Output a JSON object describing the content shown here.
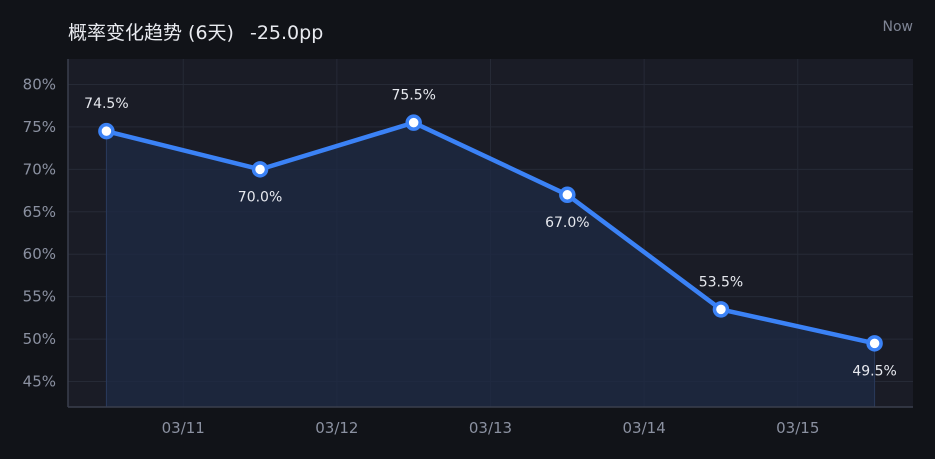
{
  "header": {
    "title": "概率变化趋势 (6天)",
    "change": "-25.0pp",
    "now_label": "Now"
  },
  "colors": {
    "background": "#111318",
    "plot_background": "#1a1c26",
    "line": "#3b82f6",
    "area": "#1d2a44"
  },
  "chart_data": {
    "type": "line",
    "title": "概率变化趋势 (6天)",
    "x": [
      0,
      1,
      2,
      3,
      4,
      5
    ],
    "x_tick_positions": [
      0.5,
      1.5,
      2.5,
      3.5,
      4.5
    ],
    "x_tick_labels": [
      "03/11",
      "03/12",
      "03/13",
      "03/14",
      "03/15"
    ],
    "series": [
      {
        "name": "probability",
        "values": [
          74.5,
          70.0,
          75.5,
          67.0,
          53.5,
          49.5
        ],
        "labels": [
          "74.5%",
          "70.0%",
          "75.5%",
          "67.0%",
          "53.5%",
          "49.5%"
        ],
        "label_side": [
          "above",
          "below",
          "above",
          "below",
          "above",
          "below"
        ]
      }
    ],
    "y_ticks": [
      45,
      50,
      55,
      60,
      65,
      70,
      75,
      80
    ],
    "y_tick_labels": [
      "45%",
      "50%",
      "55%",
      "60%",
      "65%",
      "70%",
      "75%",
      "80%"
    ],
    "ylim": [
      42,
      83
    ],
    "xlim": [
      -0.25,
      5.25
    ],
    "grid": true,
    "area_fill": true,
    "xlabel": "",
    "ylabel": ""
  }
}
